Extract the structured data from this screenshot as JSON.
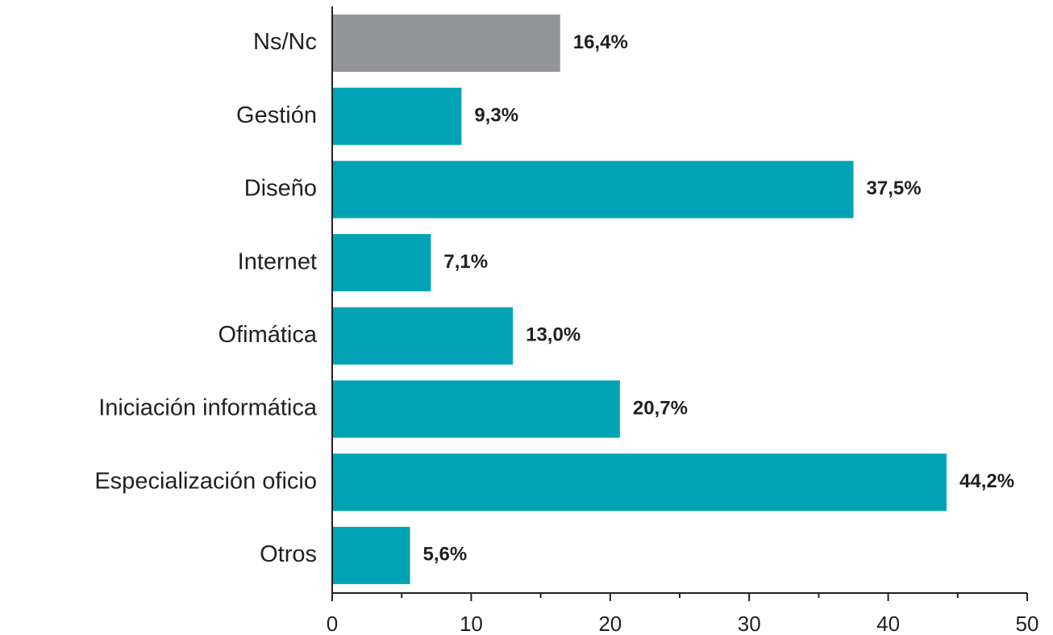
{
  "chart_data": {
    "type": "hbar",
    "categories": [
      "Ns/Nc",
      "Gestión",
      "Diseño",
      "Internet",
      "Ofimática",
      "Iniciación informática",
      "Especialización oficio",
      "Otros"
    ],
    "values": [
      16.4,
      9.3,
      37.5,
      7.1,
      13.0,
      20.7,
      44.2,
      5.6
    ],
    "value_labels": [
      "16,4%",
      "9,3%",
      "37,5%",
      "7,1%",
      "13,0%",
      "20,7%",
      "44,2%",
      "5,6%"
    ],
    "colors": [
      "#939598",
      "#00a3b4",
      "#00a3b4",
      "#00a3b4",
      "#00a3b4",
      "#00a3b4",
      "#00a3b4",
      "#00a3b4"
    ],
    "xlim": [
      0,
      50
    ],
    "xticks": [
      0,
      10,
      20,
      30,
      40,
      50
    ],
    "minor_xticks": [
      5,
      15,
      25,
      35,
      45
    ]
  }
}
